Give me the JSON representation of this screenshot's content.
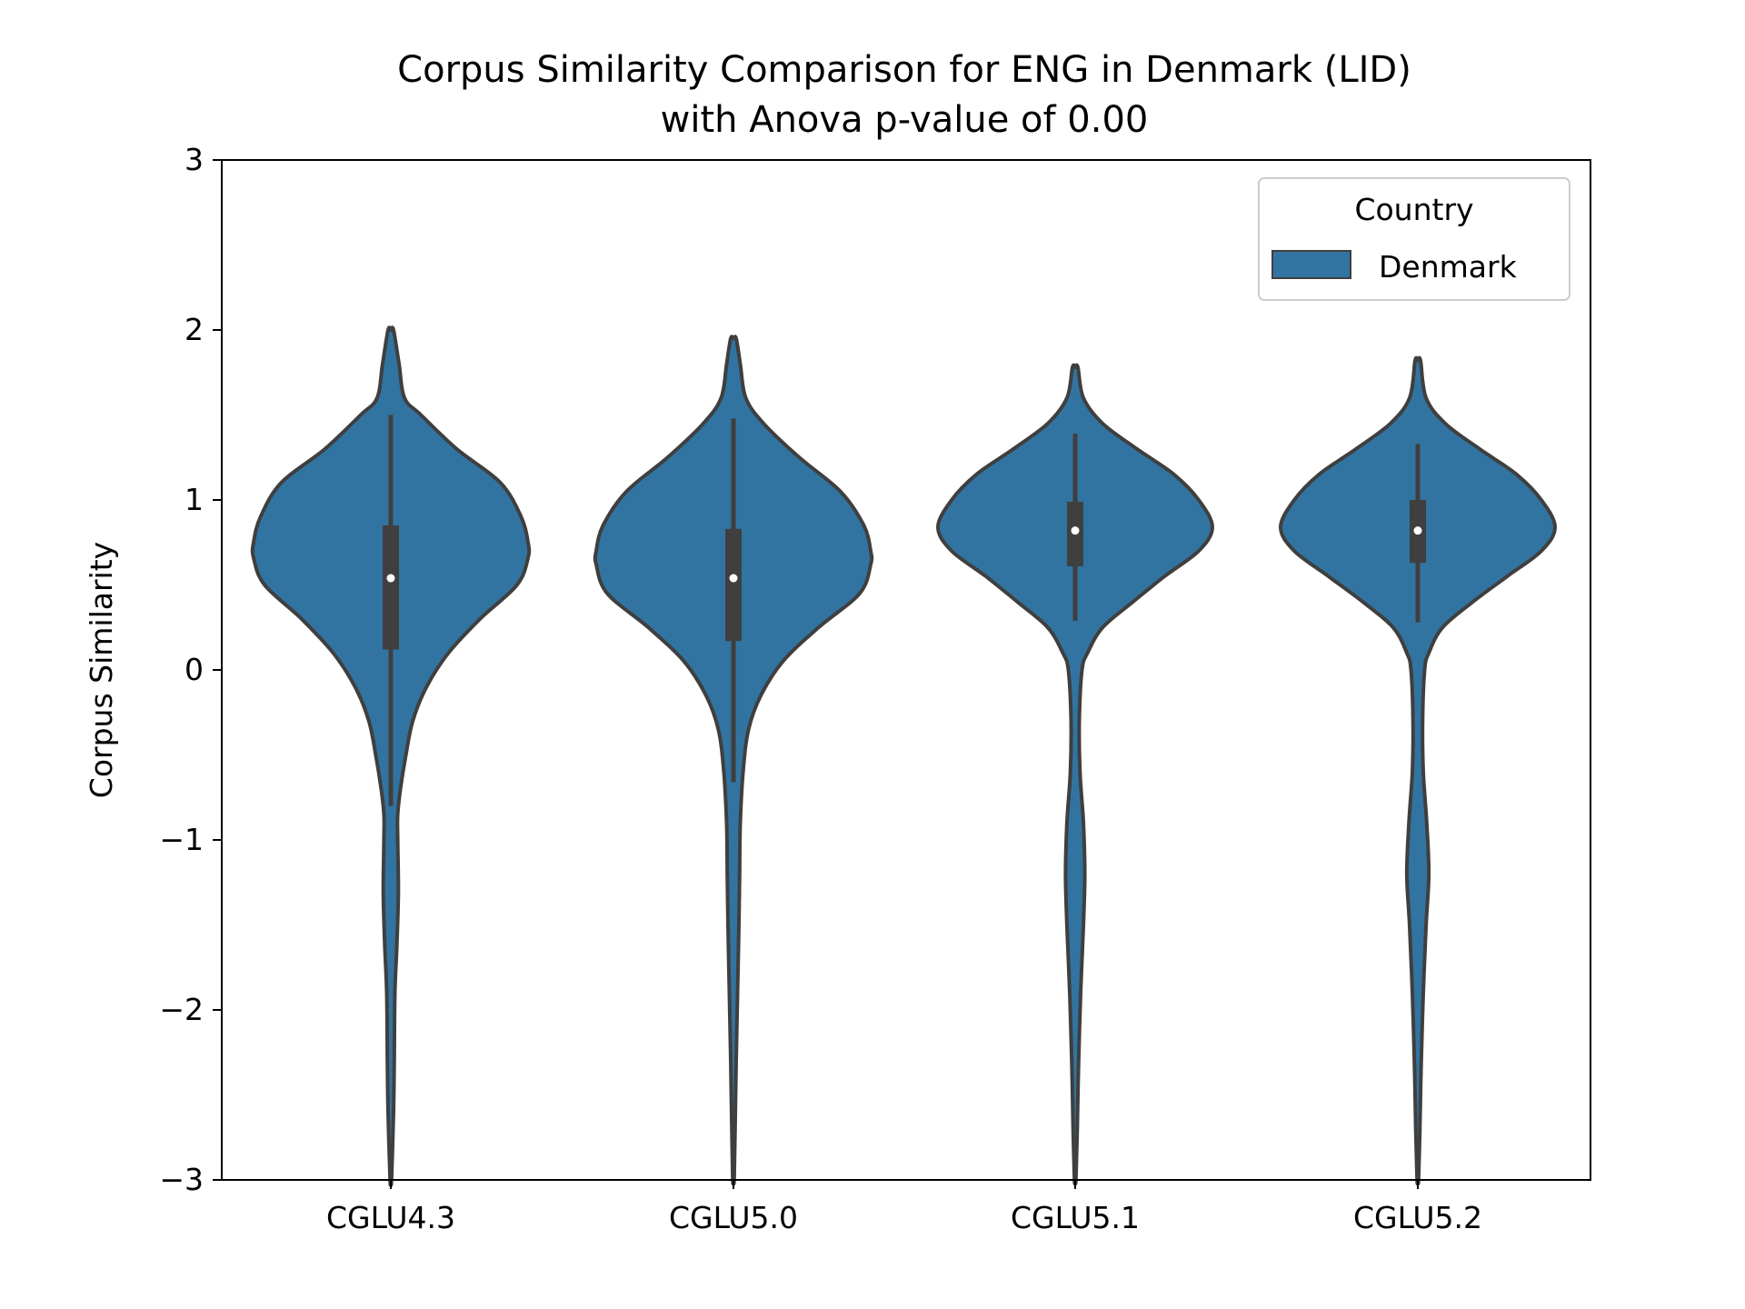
{
  "chart_data": {
    "type": "violin",
    "title_line1": "Corpus Similarity Comparison for ENG in Denmark (LID)",
    "title_line2": "with Anova p-value of 0.00",
    "xlabel": "",
    "ylabel": "Corpus Similarity",
    "ylim": [
      -3,
      3
    ],
    "yticks": [
      3,
      2,
      1,
      0,
      -1,
      -2,
      -3
    ],
    "ytick_labels": [
      "3",
      "2",
      "1",
      "0",
      "−1",
      "−2",
      "−3"
    ],
    "categories": [
      "CGLU4.3",
      "CGLU5.0",
      "CGLU5.1",
      "CGLU5.2"
    ],
    "grid": false,
    "legend": {
      "title": "Country",
      "entries": [
        "Denmark"
      ],
      "placement": "top-right"
    },
    "colors": {
      "violin_fill": "#3274a1",
      "violin_edge": "#3f3f3f",
      "box": "#3f3f3f",
      "median": "#ffffff",
      "axis": "#000000"
    },
    "series": [
      {
        "name": "Denmark",
        "violins": [
          {
            "category": "CGLU4.3",
            "median": 0.54,
            "q1": 0.12,
            "q3": 0.85,
            "whisker_low": -0.8,
            "whisker_high": 1.5,
            "kde_y": [
              2.0,
              1.8,
              1.6,
              1.5,
              1.3,
              1.1,
              0.9,
              0.75,
              0.66,
              0.5,
              0.3,
              0.1,
              -0.1,
              -0.3,
              -0.5,
              -0.7,
              -0.85,
              -1.0,
              -1.3,
              -1.6,
              -1.9,
              -2.3,
              -2.6,
              -3.0
            ],
            "kde_width": [
              0.02,
              0.06,
              0.1,
              0.22,
              0.48,
              0.8,
              0.95,
              1.0,
              1.0,
              0.92,
              0.65,
              0.42,
              0.26,
              0.16,
              0.11,
              0.07,
              0.05,
              0.05,
              0.055,
              0.045,
              0.03,
              0.025,
              0.02,
              0.005
            ]
          },
          {
            "category": "CGLU5.0",
            "median": 0.54,
            "q1": 0.17,
            "q3": 0.83,
            "whisker_low": -0.66,
            "whisker_high": 1.48,
            "kde_y": [
              1.95,
              1.8,
              1.6,
              1.45,
              1.25,
              1.05,
              0.85,
              0.7,
              0.62,
              0.45,
              0.25,
              0.05,
              -0.15,
              -0.35,
              -0.6,
              -0.9,
              -1.2,
              -1.5,
              -1.9,
              -2.3,
              -2.7,
              -3.0
            ],
            "kde_width": [
              0.02,
              0.05,
              0.09,
              0.22,
              0.48,
              0.78,
              0.95,
              1.0,
              1.0,
              0.92,
              0.62,
              0.36,
              0.2,
              0.11,
              0.07,
              0.05,
              0.045,
              0.04,
              0.03,
              0.02,
              0.012,
              0.005
            ]
          },
          {
            "category": "CGLU5.1",
            "median": 0.82,
            "q1": 0.61,
            "q3": 0.99,
            "whisker_low": 0.29,
            "whisker_high": 1.39,
            "kde_y": [
              1.78,
              1.6,
              1.45,
              1.3,
              1.15,
              1.0,
              0.84,
              0.7,
              0.55,
              0.4,
              0.25,
              0.1,
              0.0,
              -0.3,
              -0.6,
              -0.9,
              -1.2,
              -1.5,
              -1.9,
              -2.3,
              -2.7,
              -3.0
            ],
            "kde_width": [
              0.02,
              0.06,
              0.2,
              0.45,
              0.72,
              0.9,
              1.0,
              0.9,
              0.65,
              0.42,
              0.2,
              0.09,
              0.05,
              0.03,
              0.035,
              0.06,
              0.07,
              0.06,
              0.04,
              0.025,
              0.015,
              0.005
            ]
          },
          {
            "category": "CGLU5.2",
            "median": 0.82,
            "q1": 0.63,
            "q3": 1.0,
            "whisker_low": 0.28,
            "whisker_high": 1.33,
            "kde_y": [
              1.82,
              1.6,
              1.45,
              1.3,
              1.15,
              1.0,
              0.84,
              0.7,
              0.55,
              0.4,
              0.25,
              0.1,
              0.0,
              -0.3,
              -0.6,
              -0.9,
              -1.2,
              -1.5,
              -1.9,
              -2.3,
              -2.7,
              -3.0
            ],
            "kde_width": [
              0.02,
              0.06,
              0.2,
              0.45,
              0.72,
              0.9,
              1.0,
              0.9,
              0.65,
              0.4,
              0.18,
              0.08,
              0.05,
              0.035,
              0.04,
              0.065,
              0.08,
              0.06,
              0.04,
              0.025,
              0.015,
              0.005
            ]
          }
        ]
      }
    ]
  }
}
